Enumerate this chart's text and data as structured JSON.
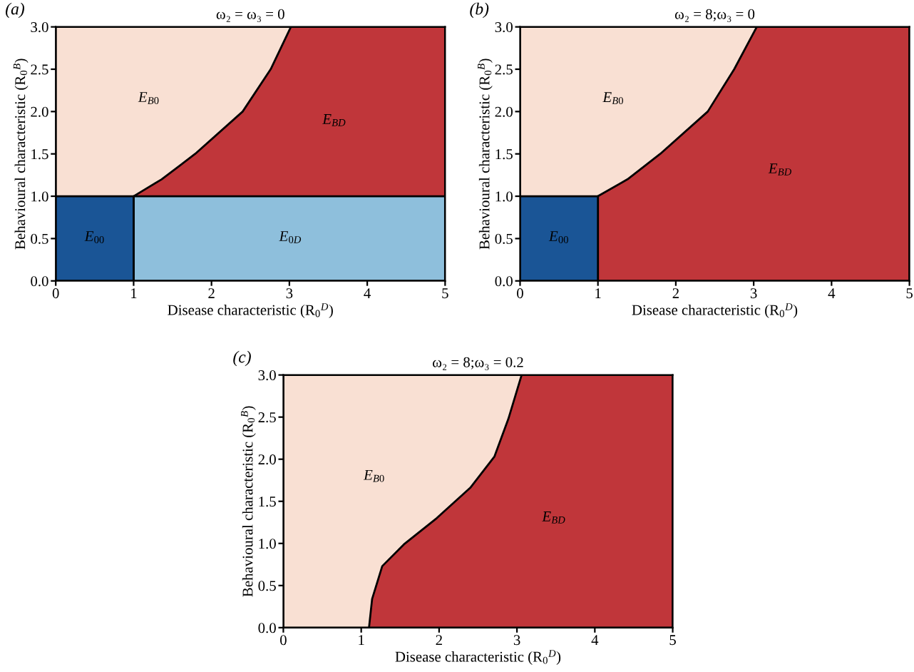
{
  "chart_data": [
    {
      "type": "area",
      "title": "ω₂ = ω₃ = 0",
      "xlabel": "Disease characteristic (R$_{0}$$^{D}$)",
      "ylabel": "Behavioural characteristic (R$_{0}$$^{B}$)",
      "xlim": [
        0,
        5
      ],
      "ylim": [
        0,
        3
      ],
      "xticks": [
        0,
        1,
        2,
        3,
        4,
        5
      ],
      "yticks": [
        {
          "value": 0,
          "label": "0.0"
        },
        {
          "value": 0.5,
          "label": "0.5"
        },
        {
          "value": 1,
          "label": "1.0"
        },
        {
          "value": 1.5,
          "label": "1.5"
        },
        {
          "value": 2,
          "label": "2.0"
        },
        {
          "value": 2.5,
          "label": "2.5"
        },
        {
          "value": 3,
          "label": "3.0"
        }
      ],
      "series": [
        {
          "name": "E$_{B0}$",
          "color": "#f9e0d3",
          "x": [
            0,
            5
          ],
          "values": [
            3,
            3
          ]
        },
        {
          "name": "E$_{BD}$",
          "color": "#c0363a",
          "x": [
            1,
            1.36,
            1.79,
            2.4,
            2.76,
            3.02,
            5
          ],
          "values": [
            1,
            1.2,
            1.5,
            2.0,
            2.5,
            3.0,
            3.0
          ]
        },
        {
          "name": "E$_{0D}$",
          "color": "#8ebfdc",
          "x": [
            1,
            5
          ],
          "values": [
            1,
            1
          ]
        },
        {
          "name": "E$_{00}$",
          "color": "#1a5596",
          "x": [
            0,
            1
          ],
          "values": [
            1,
            1
          ]
        }
      ],
      "annotations": [
        "(a)"
      ]
    },
    {
      "type": "area",
      "title": "ω₂ = 8;ω₃ = 0",
      "xlabel": "Disease characteristic (R$_{0}$$^{D}$)",
      "ylabel": "Behavioural characteristic (R$_{0}$$^{B}$)",
      "xlim": [
        0,
        5
      ],
      "ylim": [
        0,
        3
      ],
      "xticks": [
        0,
        1,
        2,
        3,
        4,
        5
      ],
      "yticks": [
        {
          "value": 0,
          "label": "0.0"
        },
        {
          "value": 0.5,
          "label": "0.5"
        },
        {
          "value": 1,
          "label": "1.0"
        },
        {
          "value": 1.5,
          "label": "1.5"
        },
        {
          "value": 2,
          "label": "2.0"
        },
        {
          "value": 2.5,
          "label": "2.5"
        },
        {
          "value": 3,
          "label": "3.0"
        }
      ],
      "series": [
        {
          "name": "E$_{B0}$",
          "color": "#f9e0d3",
          "x": [
            0,
            5
          ],
          "values": [
            3,
            3
          ]
        },
        {
          "name": "E$_{BD}$",
          "color": "#c0363a",
          "x": [
            1,
            1.38,
            1.8,
            2.41,
            2.75,
            3.04,
            5
          ],
          "values": [
            1.0,
            1.2,
            1.5,
            2.0,
            2.5,
            3.0,
            3.0
          ]
        },
        {
          "name": "E$_{00}$",
          "color": "#1a5596",
          "x": [
            0,
            1
          ],
          "values": [
            1,
            1
          ]
        }
      ],
      "annotations": [
        "(b)"
      ]
    },
    {
      "type": "area",
      "title": "ω₂ = 8;ω₃ = 0.2",
      "xlabel": "Disease characteristic (R$_{0}$$^{D}$)",
      "ylabel": "Behavioural characteristic (R$_{0}$$^{B}$)",
      "xlim": [
        0,
        5
      ],
      "ylim": [
        0,
        3
      ],
      "xticks": [
        0,
        1,
        2,
        3,
        4,
        5
      ],
      "yticks": [
        {
          "value": 0,
          "label": "0.0"
        },
        {
          "value": 0.5,
          "label": "0.5"
        },
        {
          "value": 1,
          "label": "1.0"
        },
        {
          "value": 1.5,
          "label": "1.5"
        },
        {
          "value": 2,
          "label": "2.0"
        },
        {
          "value": 2.5,
          "label": "2.5"
        },
        {
          "value": 3,
          "label": "3.0"
        }
      ],
      "series": [
        {
          "name": "E$_{B0}$",
          "color": "#f9e0d3",
          "x": [
            0,
            5
          ],
          "values": [
            3,
            3
          ]
        },
        {
          "name": "E$_{BD}$",
          "color": "#c0363a",
          "x": [
            1.1,
            1.14,
            1.27,
            1.55,
            1.97,
            2.4,
            2.71,
            2.89,
            3.06,
            5
          ],
          "values": [
            0,
            0.34,
            0.73,
            0.99,
            1.3,
            1.66,
            2.03,
            2.48,
            3.0,
            3.0
          ]
        }
      ],
      "annotations": [
        "(c)"
      ]
    }
  ]
}
